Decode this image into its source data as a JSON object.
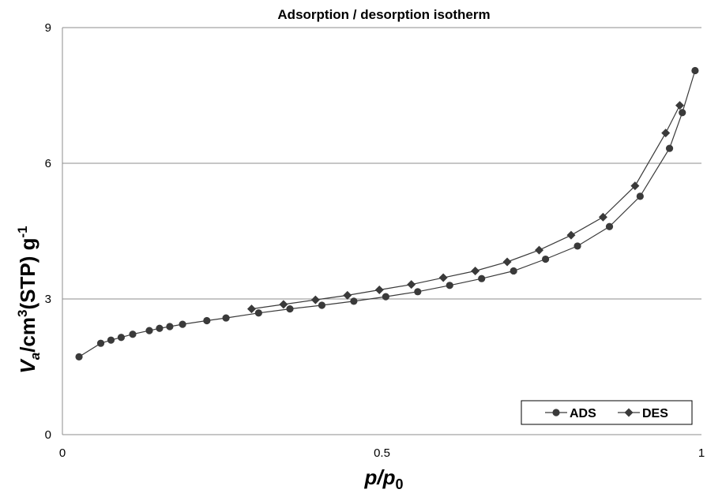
{
  "chart_data": {
    "type": "line",
    "title": "Adsorption / desorption isotherm",
    "xlabel": {
      "main": "p/p",
      "sub": "0"
    },
    "ylabel": {
      "v": "V",
      "v_sub": "a",
      "slash": "/",
      "cm": "cm",
      "cm_sup": "3",
      "stp": "(STP) g",
      "g_sup": "-1"
    },
    "xlim": [
      0,
      1
    ],
    "ylim": [
      0,
      9
    ],
    "xticks": [
      0,
      0.5,
      1
    ],
    "xtick_labels": [
      "0",
      "0.5",
      "1"
    ],
    "yticks": [
      0,
      3,
      6,
      9
    ],
    "ytick_labels": [
      "0",
      "3",
      "6",
      "9"
    ],
    "grid": "horizontal",
    "legend_position": "bottom-right",
    "series": [
      {
        "name": "ADS",
        "marker": "circle",
        "color": "#3a3a3a",
        "x": [
          0.026,
          0.06,
          0.076,
          0.092,
          0.11,
          0.136,
          0.152,
          0.168,
          0.188,
          0.226,
          0.256,
          0.307,
          0.356,
          0.406,
          0.456,
          0.506,
          0.556,
          0.606,
          0.656,
          0.706,
          0.756,
          0.806,
          0.856,
          0.904,
          0.95,
          0.97,
          0.99
        ],
        "y": [
          1.72,
          2.02,
          2.09,
          2.15,
          2.22,
          2.3,
          2.35,
          2.39,
          2.44,
          2.52,
          2.58,
          2.69,
          2.78,
          2.86,
          2.95,
          3.05,
          3.16,
          3.3,
          3.45,
          3.62,
          3.88,
          4.17,
          4.6,
          5.27,
          6.33,
          7.12,
          8.05
        ]
      },
      {
        "name": "DES",
        "marker": "diamond",
        "color": "#3a3a3a",
        "x": [
          0.296,
          0.346,
          0.396,
          0.446,
          0.496,
          0.546,
          0.596,
          0.646,
          0.696,
          0.746,
          0.796,
          0.846,
          0.896,
          0.944,
          0.966
        ],
        "y": [
          2.78,
          2.88,
          2.98,
          3.08,
          3.2,
          3.32,
          3.47,
          3.62,
          3.82,
          4.08,
          4.41,
          4.81,
          5.5,
          6.67,
          7.28
        ]
      }
    ]
  }
}
